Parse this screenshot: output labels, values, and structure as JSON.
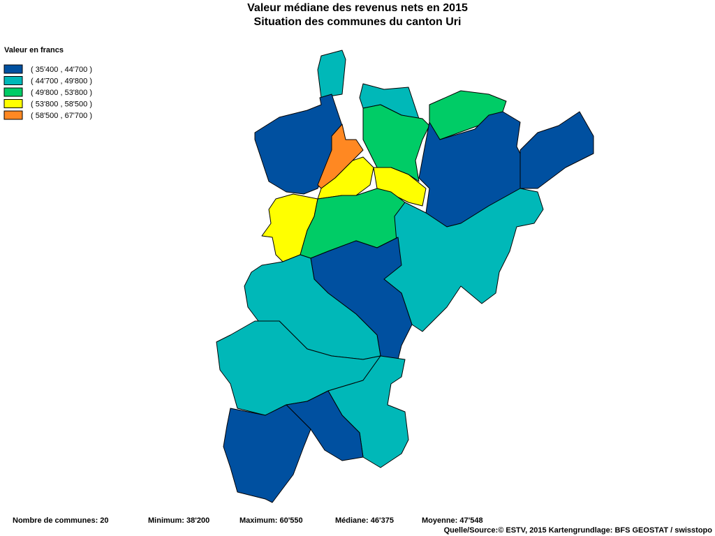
{
  "title": [
    "Valeur médiane des revenus nets en 2015",
    "Situation des communes du canton Uri"
  ],
  "legend": {
    "title": "Valeur en francs",
    "items": [
      {
        "label": "( 35'400 , 44'700 )",
        "color": "#0050a0"
      },
      {
        "label": "( 44'700 , 49'800 )",
        "color": "#00b8b8"
      },
      {
        "label": "( 49'800 , 53'800 )",
        "color": "#00cc66"
      },
      {
        "label": "( 53'800 , 58'500 )",
        "color": "#ffff00"
      },
      {
        "label": "( 58'500 , 67'700 )",
        "color": "#ff8822"
      }
    ]
  },
  "footer": {
    "stats": [
      "Nombre de communes: 20",
      "Minimum: 38'200",
      "Maximum: 60'550",
      "Médiane: 46'375",
      "Moyenne: 47'548"
    ],
    "source": "Quelle/Source:© ESTV, 2015 Kartengrundlage: BFS GEOSTAT / swisstopo"
  }
}
